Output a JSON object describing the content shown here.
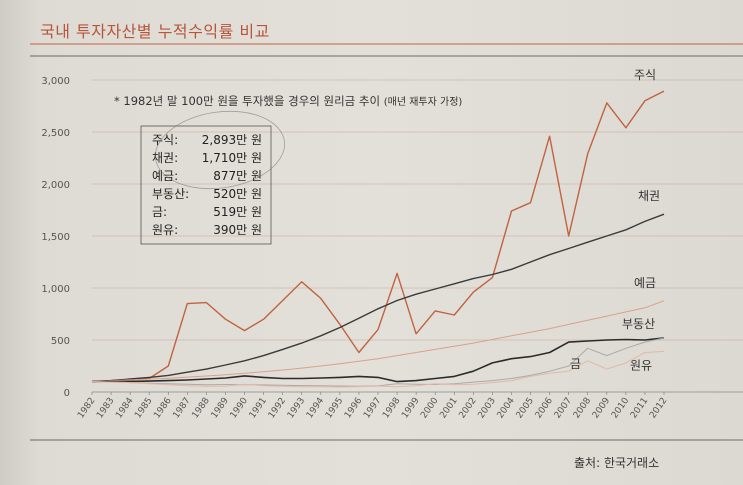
{
  "header": {
    "title": "국내 투자자산별 누적수익률 비교"
  },
  "source": "출처: 한국거래소",
  "chart_data": {
    "type": "line",
    "title": "국내 투자자산별 누적수익률 비교",
    "note": "* 1982년 말 100만 원을 투자했을 경우의 원리금 추이",
    "note_paren": "(매년 재투자 가정)",
    "ylim": [
      0,
      3000
    ],
    "y_ticks": [
      "0",
      "500",
      "1,000",
      "1,500",
      "2,000",
      "2,500",
      "3,000"
    ],
    "y_tick_values": [
      0,
      500,
      1000,
      1500,
      2000,
      2500,
      3000
    ],
    "x": [
      "1982",
      "1983",
      "1984",
      "1985",
      "1986",
      "1987",
      "1988",
      "1989",
      "1990",
      "1991",
      "1992",
      "1993",
      "1994",
      "1995",
      "1996",
      "1997",
      "1998",
      "1999",
      "2000",
      "2001",
      "2002",
      "2003",
      "2004",
      "2005",
      "2006",
      "2007",
      "2008",
      "2009",
      "2010",
      "2011",
      "2012"
    ],
    "grid": "horizontal",
    "series": [
      {
        "name": "주식",
        "color": "#c0633f",
        "width": 1.4,
        "values": [
          100,
          110,
          120,
          130,
          250,
          850,
          860,
          700,
          590,
          700,
          880,
          1060,
          900,
          650,
          380,
          600,
          1140,
          560,
          780,
          740,
          960,
          1100,
          1740,
          1820,
          2460,
          1500,
          2290,
          2780,
          2540,
          2800,
          2893
        ]
      },
      {
        "name": "채권",
        "color": "#3a3a3a",
        "width": 1.4,
        "values": [
          100,
          110,
          125,
          140,
          160,
          190,
          220,
          260,
          300,
          350,
          410,
          470,
          540,
          620,
          710,
          800,
          880,
          940,
          990,
          1040,
          1090,
          1130,
          1180,
          1250,
          1320,
          1380,
          1440,
          1500,
          1560,
          1640,
          1710
        ]
      },
      {
        "name": "예금",
        "color": "#d9a18a",
        "width": 1.0,
        "values": [
          100,
          108,
          116,
          124,
          133,
          143,
          154,
          166,
          180,
          195,
          212,
          230,
          250,
          272,
          295,
          320,
          350,
          380,
          410,
          440,
          470,
          505,
          540,
          575,
          610,
          650,
          690,
          730,
          770,
          810,
          877
        ]
      },
      {
        "name": "부동산",
        "color": "#2b2b2b",
        "width": 1.6,
        "values": [
          100,
          100,
          102,
          105,
          110,
          115,
          125,
          135,
          155,
          140,
          130,
          130,
          135,
          140,
          150,
          140,
          100,
          110,
          130,
          150,
          200,
          280,
          320,
          340,
          380,
          480,
          490,
          500,
          505,
          500,
          520
        ]
      },
      {
        "name": "금",
        "color": "#aaaaaa",
        "width": 1.0,
        "values": [
          100,
          95,
          90,
          85,
          80,
          75,
          70,
          72,
          70,
          68,
          65,
          62,
          60,
          58,
          56,
          60,
          80,
          75,
          72,
          80,
          95,
          110,
          130,
          160,
          200,
          250,
          420,
          350,
          420,
          480,
          519
        ]
      },
      {
        "name": "원유",
        "color": "#e4b8a6",
        "width": 1.0,
        "values": [
          100,
          95,
          90,
          80,
          70,
          60,
          55,
          55,
          75,
          60,
          55,
          50,
          50,
          48,
          52,
          58,
          50,
          60,
          80,
          70,
          75,
          90,
          110,
          150,
          180,
          200,
          300,
          220,
          280,
          380,
          390
        ]
      }
    ],
    "box_entries": [
      {
        "label": "주식:",
        "value": "2,893만 원"
      },
      {
        "label": "채권:",
        "value": "1,710만 원"
      },
      {
        "label": "예금:",
        "value": "877만 원"
      },
      {
        "label": "부동산:",
        "value": "520만 원"
      },
      {
        "label": "금:",
        "value": "519만 원"
      },
      {
        "label": "원유:",
        "value": "390만 원"
      }
    ]
  }
}
